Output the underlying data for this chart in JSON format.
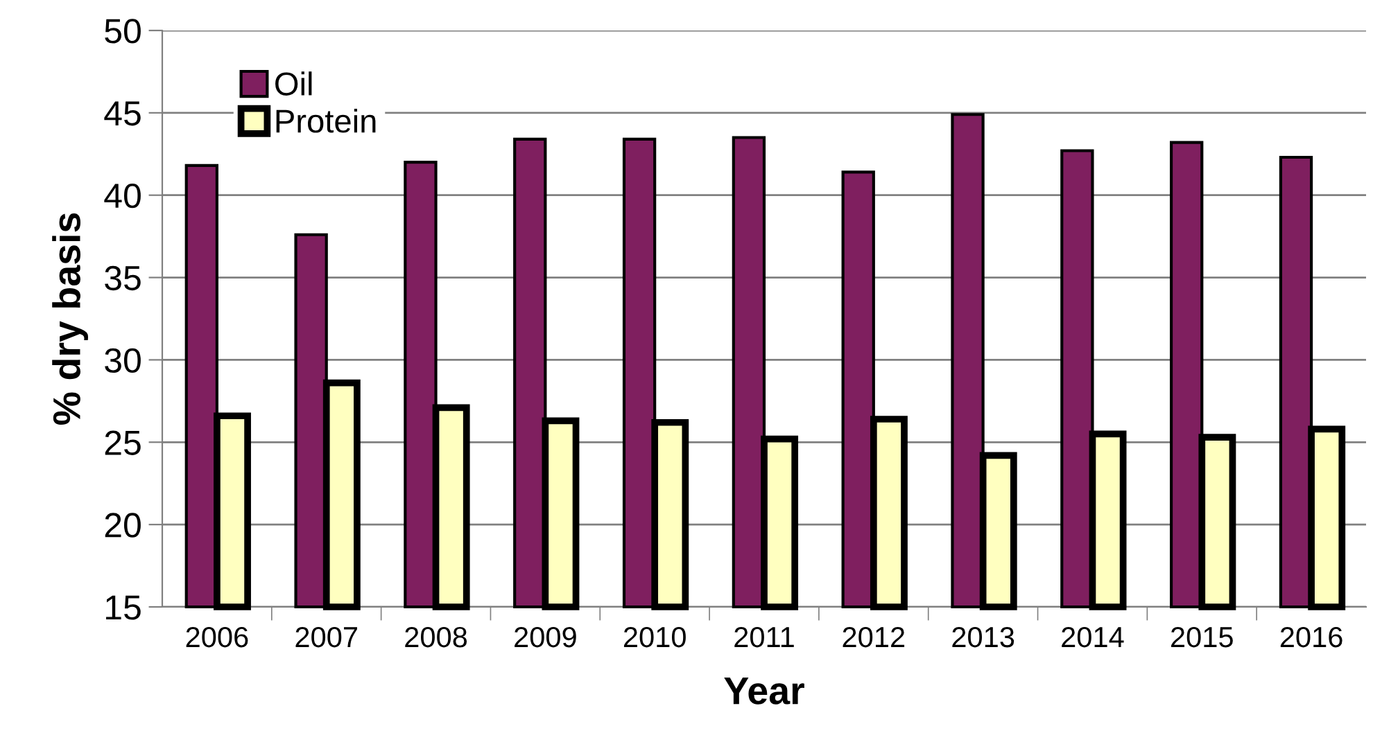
{
  "chart_data": {
    "type": "bar",
    "xlabel": "Year",
    "ylabel": "% dry basis",
    "categories": [
      "2006",
      "2007",
      "2008",
      "2009",
      "2010",
      "2011",
      "2012",
      "2013",
      "2014",
      "2015",
      "2016"
    ],
    "series": [
      {
        "name": "Oil",
        "color": "#7f1f5f",
        "values": [
          41.8,
          37.6,
          42.0,
          43.4,
          43.4,
          43.5,
          41.4,
          44.9,
          42.7,
          43.2,
          42.3
        ]
      },
      {
        "name": "Protein",
        "color": "#ffffc0",
        "values": [
          26.6,
          28.6,
          27.1,
          26.3,
          26.2,
          25.2,
          26.4,
          24.2,
          25.5,
          25.3,
          25.8
        ]
      }
    ],
    "ylim": [
      15,
      50
    ],
    "yticks": [
      15,
      20,
      25,
      30,
      35,
      40,
      45,
      50
    ],
    "grid": "y",
    "legend": "top left"
  }
}
